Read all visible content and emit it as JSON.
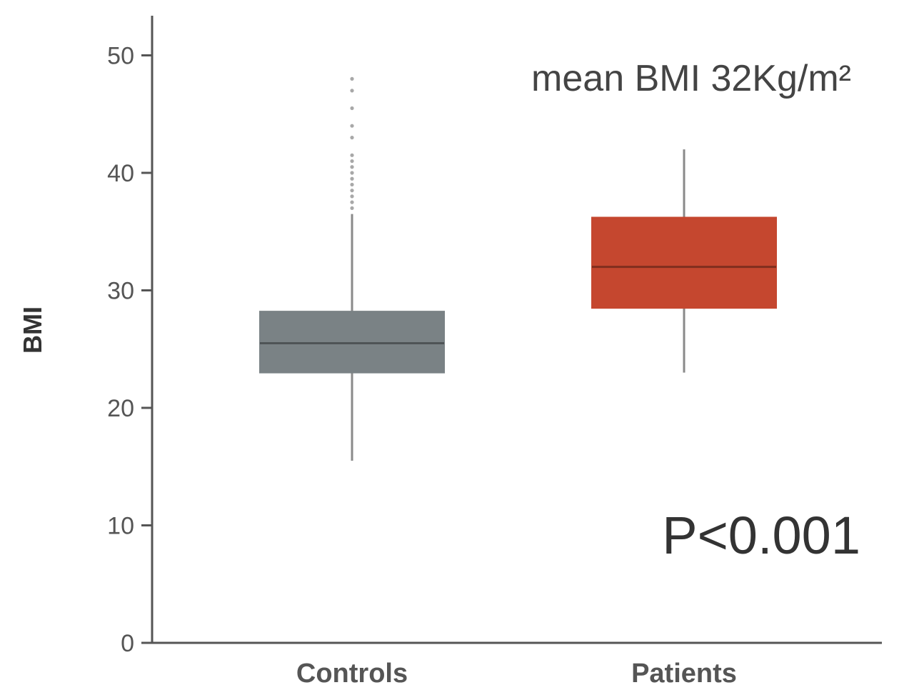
{
  "chart_data": {
    "type": "boxplot",
    "title": "",
    "xlabel": "",
    "ylabel": "BMI",
    "ylim": [
      0,
      50
    ],
    "yticks": [
      "0",
      "10",
      "20",
      "30",
      "40",
      "50"
    ],
    "grid": false,
    "categories": [
      "Controls",
      "Patients"
    ],
    "boxes": [
      {
        "category": "Controls",
        "whisker_low": 15.5,
        "q1": 23,
        "median": 25.5,
        "q3": 28.2,
        "whisker_high": 36.5,
        "outliers": [
          37,
          37.5,
          38,
          38.5,
          39,
          39.5,
          40,
          40.5,
          41,
          41.5,
          43,
          44,
          45.5,
          47,
          48
        ],
        "color": "#7a8285"
      },
      {
        "category": "Patients",
        "whisker_low": 23,
        "q1": 28.5,
        "median": 32,
        "q3": 36.2,
        "whisker_high": 42,
        "outliers": [],
        "color": "#c5472f"
      }
    ],
    "annotations": {
      "mean_text": "mean BMI 32Kg/m²",
      "p_value_text": "P<0.001"
    }
  }
}
